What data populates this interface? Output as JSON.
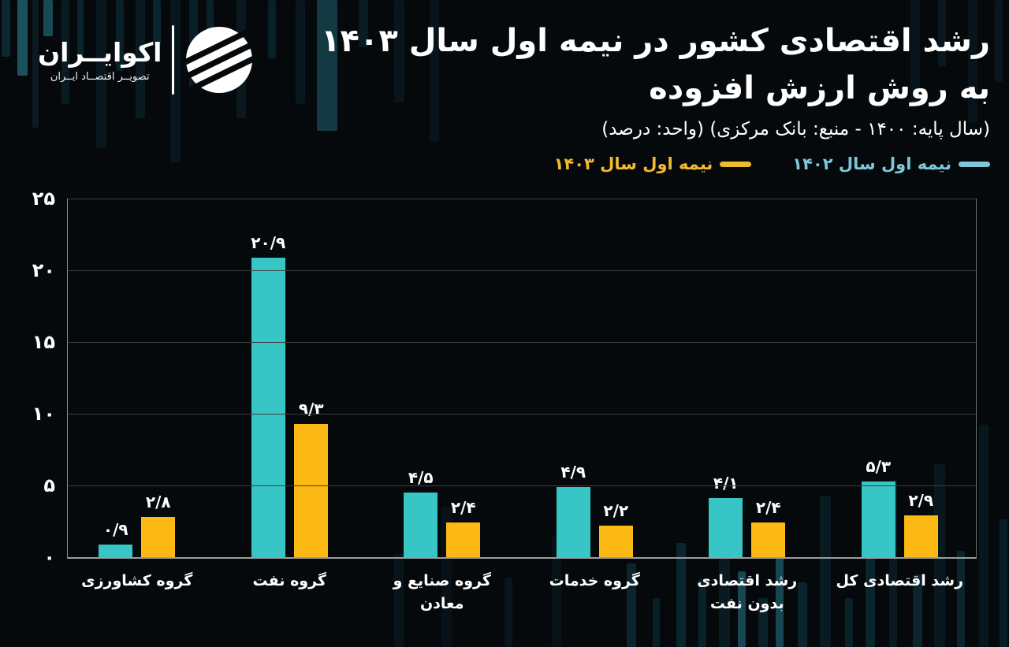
{
  "brand": {
    "name": "اکوایــران",
    "tagline": "تصویــر اقتصــاد ایــران",
    "logo_icon": "striped-globe-icon"
  },
  "header": {
    "title_line1": "رشد اقتصادی کشور در نیمه اول سال ۱۴۰۳",
    "title_line2": "به روش ارزش افزوده",
    "subtitle": "(سال پایه: ۱۴۰۰ - منبع: بانک مرکزی) (واحد: درصد)"
  },
  "legend": [
    {
      "label": "نیمه اول سال ۱۴۰۲",
      "color": "#7cc9db"
    },
    {
      "label": "نیمه اول سال ۱۴۰۳",
      "color": "#f2ba2c"
    }
  ],
  "chart_data": {
    "type": "bar",
    "title": "رشد اقتصادی کشور در نیمه اول سال ۱۴۰۳ به روش ارزش افزوده",
    "source_note": "(سال پایه: ۱۴۰۰ - منبع: بانک مرکزی) (واحد: درصد)",
    "categories": [
      "گروه کشاورزی",
      "گروه نفت",
      "گروه صنایع و معادن",
      "گروه خدمات",
      "رشد اقتصادی بدون نفت",
      "رشد اقتصادی کل"
    ],
    "category_lines": [
      [
        "گروه کشاورزی"
      ],
      [
        "گروه نفت"
      ],
      [
        "گروه صنایع و",
        "معادن"
      ],
      [
        "گروه خدمات"
      ],
      [
        "رشد اقتصادی",
        "بدون نفت"
      ],
      [
        "رشد اقتصادی کل"
      ]
    ],
    "series": [
      {
        "name": "نیمه اول سال ۱۴۰۲",
        "color": "#38c5c6",
        "values": [
          0.9,
          20.9,
          4.5,
          4.9,
          4.1,
          5.3
        ],
        "labels": [
          "۰/۹",
          "۲۰/۹",
          "۴/۵",
          "۴/۹",
          "۴/۱",
          "۵/۳"
        ]
      },
      {
        "name": "نیمه اول سال ۱۴۰۳",
        "color": "#fdb913",
        "values": [
          2.8,
          9.3,
          2.4,
          2.2,
          2.4,
          2.9
        ],
        "labels": [
          "۲/۸",
          "۹/۳",
          "۲/۴",
          "۲/۲",
          "۲/۴",
          "۲/۹"
        ]
      }
    ],
    "ylim": [
      0,
      25
    ],
    "y_ticks": [
      {
        "value": 0,
        "label": "۰"
      },
      {
        "value": 5,
        "label": "۵"
      },
      {
        "value": 10,
        "label": "۱۰"
      },
      {
        "value": 15,
        "label": "۱۵"
      },
      {
        "value": 20,
        "label": "۲۰"
      },
      {
        "value": 25,
        "label": "۲۵"
      }
    ],
    "grid": "horizontal",
    "legend_position": "top-right"
  },
  "colors": {
    "background": "#06090c",
    "bar_cyan": "#38c5c6",
    "bar_orange": "#fdb913",
    "legend_cyan": "#7cc9db",
    "legend_orange": "#f2ba2c",
    "text": "#ffffff",
    "gridline": "#3c3c3c",
    "axis": "#9c9c9c",
    "deco_bar": "#10414f"
  }
}
